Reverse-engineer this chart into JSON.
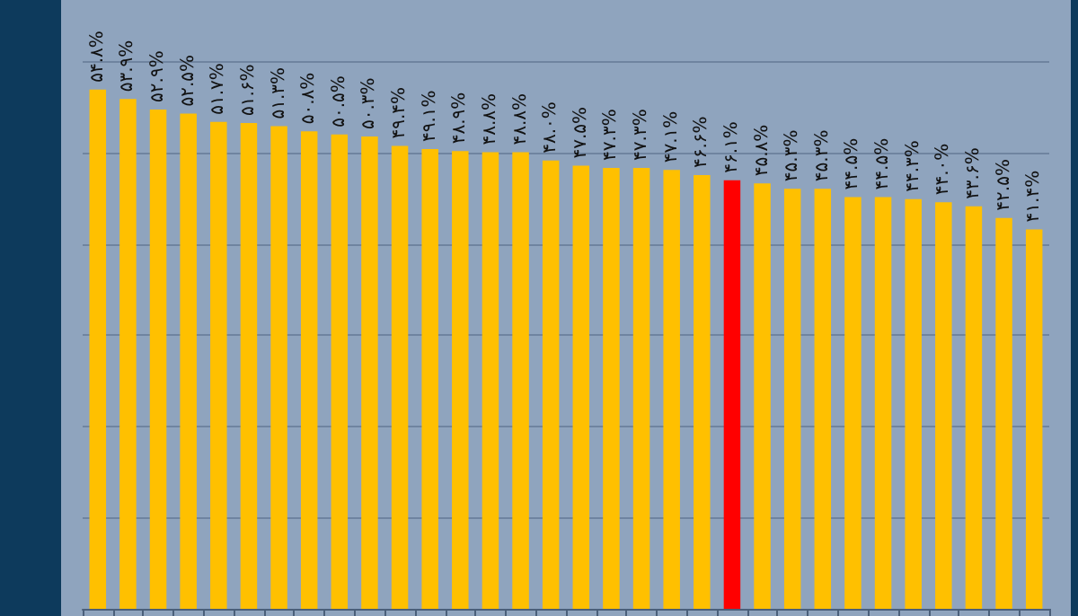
{
  "chart_data": {
    "type": "bar",
    "categories": [
      null,
      null,
      null,
      null,
      null,
      null,
      null,
      null,
      null,
      null,
      null,
      null,
      null,
      null,
      null,
      null,
      null,
      null,
      null,
      null,
      null,
      null,
      null,
      null,
      null,
      null,
      null,
      null,
      null,
      null,
      null,
      null
    ],
    "values": [
      54.8,
      53.9,
      52.9,
      52.5,
      51.7,
      51.6,
      51.3,
      50.8,
      50.5,
      50.3,
      49.4,
      49.1,
      48.9,
      48.8,
      48.8,
      48.0,
      47.5,
      47.3,
      47.3,
      47.1,
      46.6,
      46.1,
      45.8,
      45.3,
      45.3,
      44.5,
      44.5,
      44.3,
      44.0,
      43.6,
      42.5,
      41.4
    ],
    "value_labels": [
      "۵۴.۸%",
      "۵۳.۹%",
      "۵۲.۹%",
      "۵۲.۵%",
      "۵۱.۷%",
      "۵۱.۶%",
      "۵۱.۳%",
      "۵۰.۸%",
      "۵۰.۵%",
      "۵۰.۳%",
      "۴۹.۴%",
      "۴۹.۱%",
      "۴۸.۹%",
      "۴۸.۸%",
      "۴۸.۸%",
      "۴۸.۰%",
      "۴۷.۵%",
      "۴۷.۳%",
      "۴۷.۳%",
      "۴۷.۱%",
      "۴۶.۶%",
      "۴۶.۱%",
      "۴۵.۸%",
      "۴۵.۳%",
      "۴۵.۳%",
      "۴۴.۵%",
      "۴۴.۵%",
      "۴۴.۳%",
      "۴۴.۰%",
      "۴۳.۶%",
      "۴۲.۵%",
      "۴۱.۴%"
    ],
    "colors": [
      "#ffc000",
      "#ffc000",
      "#ffc000",
      "#ffc000",
      "#ffc000",
      "#ffc000",
      "#ffc000",
      "#ffc000",
      "#ffc000",
      "#ffc000",
      "#ffc000",
      "#ffc000",
      "#ffc000",
      "#ffc000",
      "#ffc000",
      "#ffc000",
      "#ffc000",
      "#ffc000",
      "#ffc000",
      "#ffc000",
      "#ffc000",
      "#ff0000",
      "#ffc000",
      "#ffc000",
      "#ffc000",
      "#ffc000",
      "#ffc000",
      "#ffc000",
      "#ffc000",
      "#ffc000",
      "#ffc000",
      "#ffc000"
    ],
    "ylim": [
      5,
      63.4
    ],
    "yticks": [
      {
        "value": 13.75,
        "label": null
      },
      {
        "value": 22.5,
        "label": null
      },
      {
        "value": 31.25,
        "label": null
      },
      {
        "value": 40,
        "label": null
      },
      {
        "value": 48.75,
        "label": null
      },
      {
        "value": 57.5,
        "label": null
      }
    ],
    "grid": "y",
    "tick_labels": false
  }
}
